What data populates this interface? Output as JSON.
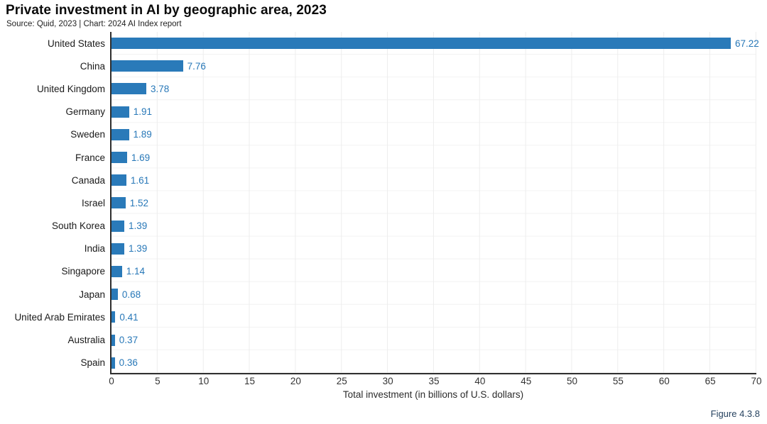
{
  "header": {
    "title": "Private investment in AI by geographic area, 2023",
    "source": "Source: Quid, 2023 | Chart: 2024 AI Index report"
  },
  "chart_data": {
    "type": "bar",
    "orientation": "horizontal",
    "title": "Private investment in AI by geographic area, 2023",
    "categories": [
      "United States",
      "China",
      "United Kingdom",
      "Germany",
      "Sweden",
      "France",
      "Canada",
      "Israel",
      "South Korea",
      "India",
      "Singapore",
      "Japan",
      "United Arab Emirates",
      "Australia",
      "Spain"
    ],
    "values": [
      67.22,
      7.76,
      3.78,
      1.91,
      1.89,
      1.69,
      1.61,
      1.52,
      1.39,
      1.39,
      1.14,
      0.68,
      0.41,
      0.37,
      0.36
    ],
    "value_labels": [
      "67.22",
      "7.76",
      "3.78",
      "1.91",
      "1.89",
      "1.69",
      "1.61",
      "1.52",
      "1.39",
      "1.39",
      "1.14",
      "0.68",
      "0.41",
      "0.37",
      "0.36"
    ],
    "xlabel": "Total investment (in billions of U.S. dollars)",
    "ylabel": "",
    "xlim": [
      0,
      70
    ],
    "xticks": [
      "0",
      "5",
      "10",
      "15",
      "20",
      "25",
      "30",
      "35",
      "40",
      "45",
      "50",
      "55",
      "60",
      "65",
      "70"
    ],
    "grid": true,
    "legend": "none",
    "bar_color": "#2a7ab9",
    "value_label_color": "#2878b8",
    "axis_color": "#2e2e2e"
  },
  "footer": {
    "figure_label": "Figure 4.3.8"
  }
}
